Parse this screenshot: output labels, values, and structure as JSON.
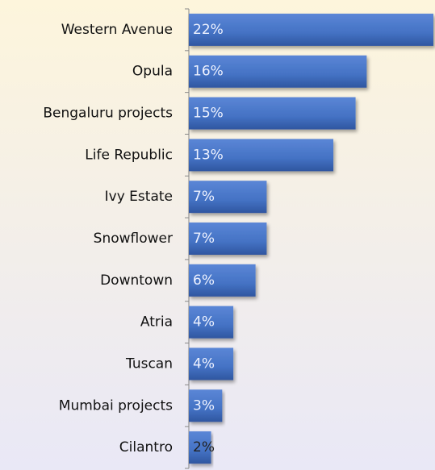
{
  "chart_data": {
    "type": "hbar",
    "categories": [
      "Western Avenue",
      "Opula",
      "Bengaluru projects",
      "Life Republic",
      "Ivy Estate",
      "Snowflower",
      "Downtown",
      "Atria",
      "Tuscan",
      "Mumbai projects",
      "Cilantro"
    ],
    "values": [
      22,
      16,
      15,
      13,
      7,
      7,
      6,
      4,
      4,
      3,
      2
    ],
    "value_labels": [
      "22%",
      "16%",
      "15%",
      "13%",
      "7%",
      "7%",
      "6%",
      "4%",
      "4%",
      "3%",
      "2%"
    ],
    "color": "#4472c4"
  }
}
